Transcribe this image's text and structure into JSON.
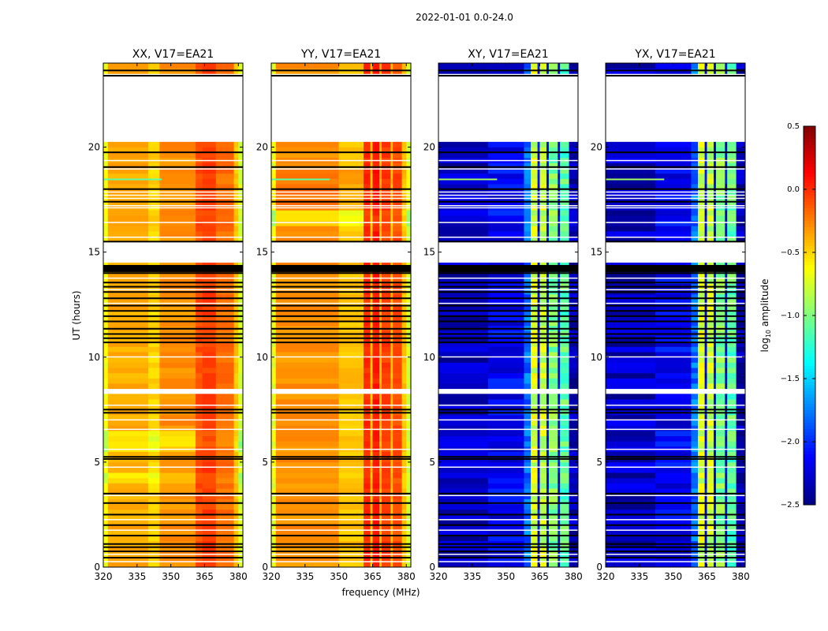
{
  "chart_data": {
    "type": "heatmap",
    "suptitle": "2022-01-01 0.0-24.0",
    "xlabel": "frequency (MHz)",
    "ylabel": "UT (hours)",
    "xlim": [
      320,
      382
    ],
    "ylim": [
      0,
      24
    ],
    "xticks": [
      "320",
      "335",
      "350",
      "365",
      "380"
    ],
    "xtick_values": [
      320,
      335,
      350,
      365,
      380
    ],
    "yticks": [
      "0",
      "5",
      "10",
      "15",
      "20"
    ],
    "ytick_values": [
      0,
      5,
      10,
      15,
      20
    ],
    "colorbar": {
      "label_main": "log",
      "label_sub": "10",
      "label_tail": " amplitude",
      "colormap": "jet",
      "range": [
        -2.5,
        0.5
      ],
      "ticks": [
        "0.5",
        "0.0",
        "−0.5",
        "−1.0",
        "−1.5",
        "−2.0",
        "−2.5"
      ],
      "tick_values": [
        0.5,
        0.0,
        -0.5,
        -1.0,
        -1.5,
        -2.0,
        -2.5
      ]
    },
    "flagged_gaps_hours": [
      [
        20.2,
        23.4
      ],
      [
        14.6,
        15.4
      ],
      [
        8.35,
        8.6
      ],
      [
        10.45,
        10.6
      ]
    ],
    "flag_lines_black_hours": [
      0.45,
      0.75,
      0.95,
      1.1,
      1.5,
      2.0,
      2.5,
      3.05,
      3.5,
      5.15,
      5.25,
      7.35,
      7.5,
      10.7,
      10.9,
      11.1,
      11.35,
      11.7,
      11.95,
      12.2,
      12.45,
      12.8,
      13.1,
      13.35,
      13.55,
      14.0,
      14.35,
      15.5,
      17.4,
      18.0,
      19.05,
      19.75,
      23.4,
      23.65
    ],
    "flag_band_black_hours": [
      [
        14.05,
        14.35
      ]
    ],
    "flag_lines_white_hours": [
      0.25,
      0.6,
      1.75,
      2.25,
      3.4,
      4.75,
      5.6,
      6.55,
      7.0,
      7.7,
      10.0,
      12.55,
      13.2,
      13.75,
      15.7,
      16.4,
      17.1,
      17.2,
      17.55,
      17.7,
      17.85,
      18.95,
      19.35
    ],
    "panels": [
      {
        "title": "XX, V17=EA21",
        "pol": "XX",
        "base_level": -0.3,
        "bands": [
          {
            "from_mhz": 320,
            "to_mhz": 322,
            "level": -0.65
          },
          {
            "from_mhz": 322,
            "to_mhz": 340,
            "level": -0.38
          },
          {
            "from_mhz": 340,
            "to_mhz": 345,
            "level": -0.5
          },
          {
            "from_mhz": 345,
            "to_mhz": 361,
            "level": -0.3
          },
          {
            "from_mhz": 361,
            "to_mhz": 364,
            "level": -0.1
          },
          {
            "from_mhz": 364,
            "to_mhz": 370,
            "level": -0.05
          },
          {
            "from_mhz": 370,
            "to_mhz": 378,
            "level": -0.2
          },
          {
            "from_mhz": 378,
            "to_mhz": 380,
            "level": -0.45
          },
          {
            "from_mhz": 380,
            "to_mhz": 382,
            "level": -0.75
          }
        ],
        "bright_rows": [
          [
            4.0,
            4.6,
            -0.6
          ],
          [
            5.5,
            6.4,
            -0.65
          ]
        ],
        "rfi_row_hours": 18.45
      },
      {
        "title": "YY, V17=EA21",
        "pol": "YY",
        "base_level": -0.35,
        "bands": [
          {
            "from_mhz": 320,
            "to_mhz": 322,
            "level": -0.7
          },
          {
            "from_mhz": 322,
            "to_mhz": 350,
            "level": -0.3
          },
          {
            "from_mhz": 350,
            "to_mhz": 361,
            "level": -0.45
          },
          {
            "from_mhz": 361,
            "to_mhz": 364,
            "level": 0.0
          },
          {
            "from_mhz": 364,
            "to_mhz": 365,
            "level": -0.45
          },
          {
            "from_mhz": 365,
            "to_mhz": 368,
            "level": 0.05
          },
          {
            "from_mhz": 368,
            "to_mhz": 369,
            "level": -0.45
          },
          {
            "from_mhz": 369,
            "to_mhz": 373,
            "level": -0.05
          },
          {
            "from_mhz": 373,
            "to_mhz": 374,
            "level": -0.45
          },
          {
            "from_mhz": 374,
            "to_mhz": 378,
            "level": -0.1
          },
          {
            "from_mhz": 378,
            "to_mhz": 380,
            "level": -0.45
          },
          {
            "from_mhz": 380,
            "to_mhz": 382,
            "level": -0.75
          }
        ],
        "bright_rows": [
          [
            17.0,
            18.9,
            -0.2
          ],
          [
            16.2,
            17.0,
            -0.7
          ]
        ],
        "rfi_row_hours": 18.45
      },
      {
        "title": "XY, V17=EA21",
        "pol": "XY",
        "base_level": -2.3,
        "bands": [
          {
            "from_mhz": 320,
            "to_mhz": 342,
            "level": -2.3
          },
          {
            "from_mhz": 342,
            "to_mhz": 358,
            "level": -2.15
          },
          {
            "from_mhz": 358,
            "to_mhz": 361,
            "level": -1.8
          },
          {
            "from_mhz": 361,
            "to_mhz": 364,
            "level": -0.75
          },
          {
            "from_mhz": 364,
            "to_mhz": 365,
            "level": -2.2
          },
          {
            "from_mhz": 365,
            "to_mhz": 368,
            "level": -0.8
          },
          {
            "from_mhz": 368,
            "to_mhz": 369,
            "level": -2.2
          },
          {
            "from_mhz": 369,
            "to_mhz": 373,
            "level": -1.0
          },
          {
            "from_mhz": 373,
            "to_mhz": 374,
            "level": -2.2
          },
          {
            "from_mhz": 374,
            "to_mhz": 378,
            "level": -1.1
          },
          {
            "from_mhz": 378,
            "to_mhz": 382,
            "level": -2.35
          }
        ],
        "bright_rows": [],
        "rfi_row_hours": 18.45
      },
      {
        "title": "YX, V17=EA21",
        "pol": "YX",
        "base_level": -2.3,
        "bands": [
          {
            "from_mhz": 320,
            "to_mhz": 342,
            "level": -2.3
          },
          {
            "from_mhz": 342,
            "to_mhz": 358,
            "level": -2.15
          },
          {
            "from_mhz": 358,
            "to_mhz": 361,
            "level": -1.8
          },
          {
            "from_mhz": 361,
            "to_mhz": 364,
            "level": -0.75
          },
          {
            "from_mhz": 364,
            "to_mhz": 365,
            "level": -2.2
          },
          {
            "from_mhz": 365,
            "to_mhz": 368,
            "level": -0.8
          },
          {
            "from_mhz": 368,
            "to_mhz": 369,
            "level": -2.2
          },
          {
            "from_mhz": 369,
            "to_mhz": 373,
            "level": -1.0
          },
          {
            "from_mhz": 373,
            "to_mhz": 374,
            "level": -2.2
          },
          {
            "from_mhz": 374,
            "to_mhz": 378,
            "level": -1.1
          },
          {
            "from_mhz": 378,
            "to_mhz": 382,
            "level": -2.35
          }
        ],
        "bright_rows": [],
        "rfi_row_hours": 18.45
      }
    ]
  }
}
